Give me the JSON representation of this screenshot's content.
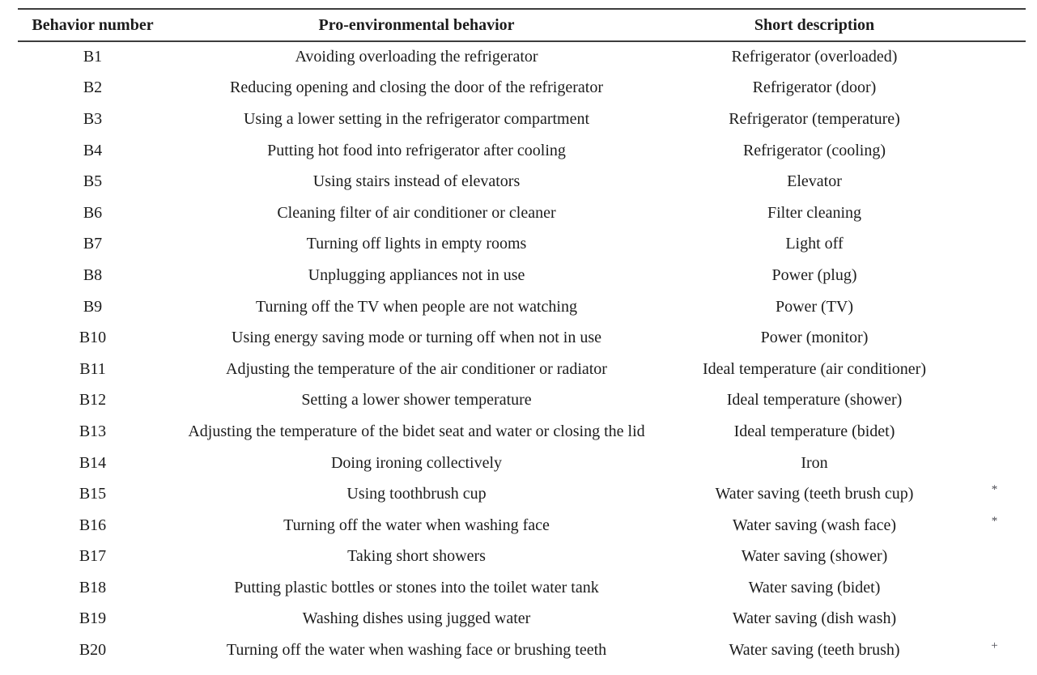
{
  "table": {
    "headers": {
      "behavior_number": "Behavior number",
      "pro_environmental_behavior": "Pro-environmental behavior",
      "short_description": "Short description"
    },
    "rows": [
      {
        "number": "B1",
        "behavior": "Avoiding overloading the refrigerator",
        "description": "Refrigerator (overloaded)",
        "marker": ""
      },
      {
        "number": "B2",
        "behavior": "Reducing opening and closing the door of the refrigerator",
        "description": "Refrigerator (door)",
        "marker": ""
      },
      {
        "number": "B3",
        "behavior": "Using a lower setting in the refrigerator compartment",
        "description": "Refrigerator (temperature)",
        "marker": ""
      },
      {
        "number": "B4",
        "behavior": "Putting hot food into refrigerator after cooling",
        "description": "Refrigerator (cooling)",
        "marker": ""
      },
      {
        "number": "B5",
        "behavior": "Using stairs instead of elevators",
        "description": "Elevator",
        "marker": ""
      },
      {
        "number": "B6",
        "behavior": "Cleaning filter of air conditioner or cleaner",
        "description": "Filter cleaning",
        "marker": ""
      },
      {
        "number": "B7",
        "behavior": "Turning off lights in empty rooms",
        "description": "Light off",
        "marker": ""
      },
      {
        "number": "B8",
        "behavior": "Unplugging appliances not in use",
        "description": "Power (plug)",
        "marker": ""
      },
      {
        "number": "B9",
        "behavior": "Turning off the TV when people are not watching",
        "description": "Power (TV)",
        "marker": ""
      },
      {
        "number": "B10",
        "behavior": "Using energy saving mode or turning off when not in use",
        "description": "Power (monitor)",
        "marker": ""
      },
      {
        "number": "B11",
        "behavior": "Adjusting the temperature of the air conditioner or radiator",
        "description": "Ideal temperature (air conditioner)",
        "marker": ""
      },
      {
        "number": "B12",
        "behavior": "Setting a lower shower temperature",
        "description": "Ideal temperature (shower)",
        "marker": ""
      },
      {
        "number": "B13",
        "behavior": "Adjusting the temperature of the bidet seat and water or closing the lid",
        "description": "Ideal temperature (bidet)",
        "marker": ""
      },
      {
        "number": "B14",
        "behavior": "Doing ironing collectively",
        "description": "Iron",
        "marker": ""
      },
      {
        "number": "B15",
        "behavior": "Using toothbrush cup",
        "description": "Water saving (teeth brush cup)",
        "marker": "*"
      },
      {
        "number": "B16",
        "behavior": "Turning off the water when washing face",
        "description": "Water saving (wash face)",
        "marker": "*"
      },
      {
        "number": "B17",
        "behavior": "Taking short showers",
        "description": "Water saving (shower)",
        "marker": ""
      },
      {
        "number": "B18",
        "behavior": "Putting plastic bottles or stones into the toilet water tank",
        "description": "Water saving (bidet)",
        "marker": ""
      },
      {
        "number": "B19",
        "behavior": "Washing dishes using jugged water",
        "description": "Water saving (dish wash)",
        "marker": ""
      },
      {
        "number": "B20",
        "behavior": "Turning off the water when washing face or brushing teeth",
        "description": "Water saving (teeth brush)",
        "marker": "+"
      }
    ]
  },
  "colors": {
    "background": "#ffffff",
    "text": "#1c1c1c",
    "rule": "#3d3d3d",
    "marker": "#4a4a52"
  }
}
